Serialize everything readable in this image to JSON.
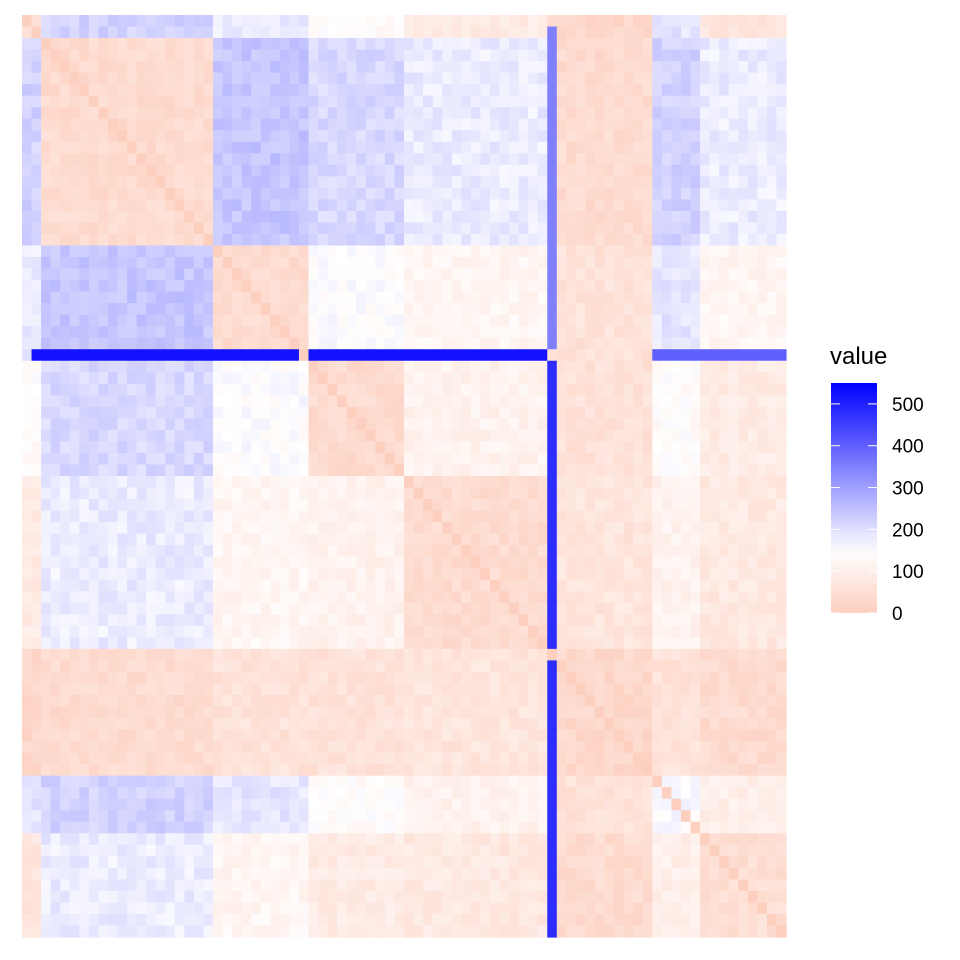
{
  "chart_data": {
    "type": "heatmap",
    "title": "",
    "xlabel": "",
    "ylabel": "",
    "n": 80,
    "value_range": [
      0,
      550
    ],
    "color_scale": {
      "low": "#fdcfbf",
      "mid": "#ffffff",
      "high": "#0000ff",
      "midpoint": 150
    },
    "legend": {
      "title": "value",
      "position": "right",
      "ticks": [
        0,
        100,
        200,
        300,
        400,
        500
      ],
      "tick_labels": [
        "0",
        "100",
        "200",
        "300",
        "400",
        "500"
      ]
    },
    "block_boundaries": [
      2,
      20,
      30,
      40,
      55,
      66,
      71,
      80
    ],
    "block_base_values": [
      [
        70,
        220,
        180,
        140,
        90,
        30,
        190,
        70
      ],
      [
        220,
        40,
        240,
        210,
        180,
        40,
        220,
        180
      ],
      [
        180,
        240,
        40,
        150,
        120,
        60,
        190,
        120
      ],
      [
        140,
        210,
        150,
        40,
        110,
        60,
        140,
        90
      ],
      [
        90,
        180,
        120,
        110,
        40,
        70,
        110,
        80
      ],
      [
        30,
        40,
        60,
        60,
        70,
        30,
        60,
        40
      ],
      [
        190,
        220,
        190,
        140,
        110,
        60,
        160,
        100
      ],
      [
        70,
        180,
        120,
        90,
        80,
        40,
        100,
        50
      ]
    ],
    "hotspots": [
      {
        "row": 29,
        "col_range": [
          1,
          55
        ],
        "value": 520
      },
      {
        "row": 29,
        "col_range": [
          66,
          80
        ],
        "value": 400
      },
      {
        "col": 55,
        "row_range": [
          30,
          80
        ],
        "value": 480
      },
      {
        "col": 55,
        "row_range": [
          1,
          29
        ],
        "value": 350
      }
    ],
    "diagonal_value": 0
  }
}
